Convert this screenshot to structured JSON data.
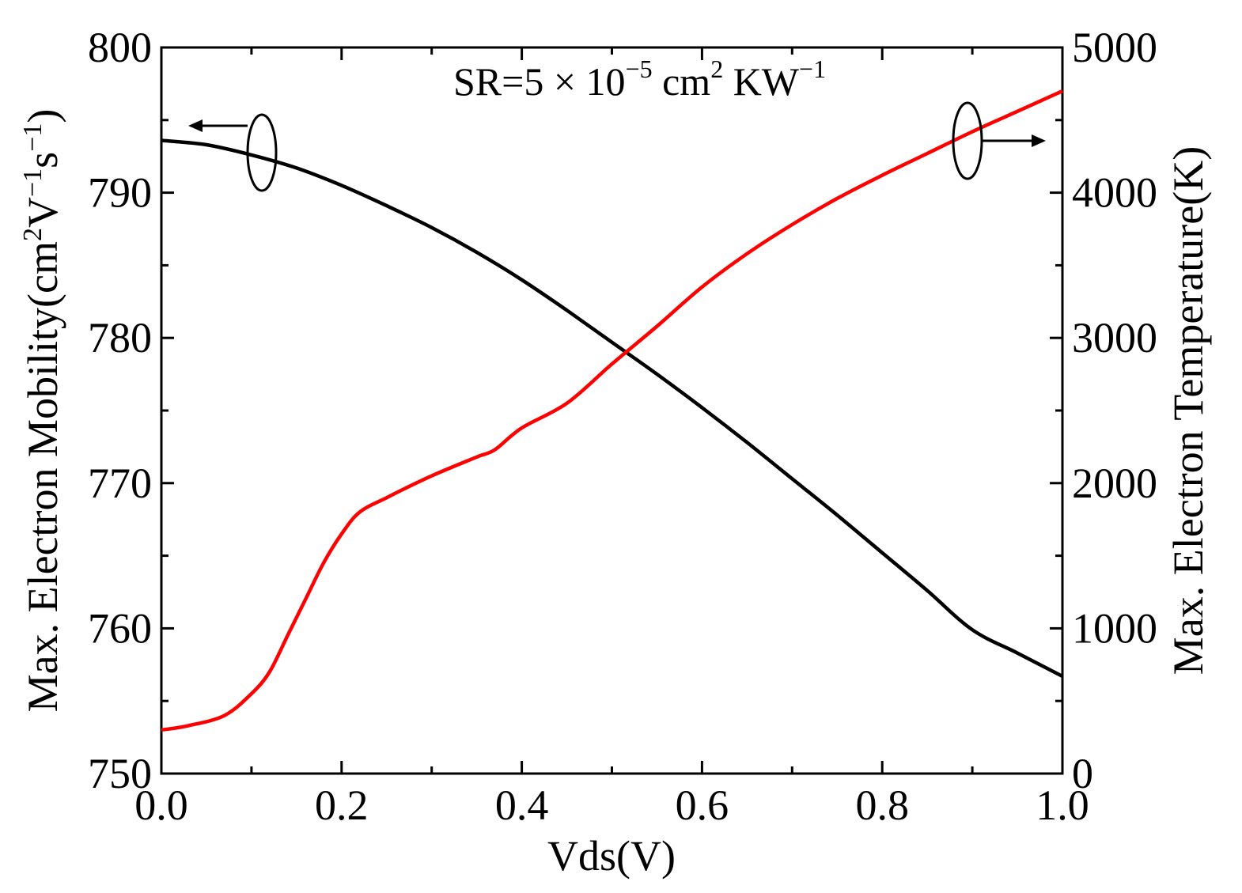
{
  "chart_data": {
    "type": "line",
    "title": "",
    "annotation": {
      "prefix": "SR=5 × 10",
      "exponent": "−5",
      "unit_base": " cm",
      "unit_exponent": "2",
      "unit_tail": " KW",
      "unit_tail_exponent": "−1"
    },
    "xlabel": "Vds(V)",
    "xlim": [
      0.0,
      1.0
    ],
    "x_ticks": [
      "0.0",
      "0.2",
      "0.4",
      "0.6",
      "0.8",
      "1.0"
    ],
    "y_left": {
      "label_prefix": "Max. Electron Mobility(cm",
      "label_sup1": "2",
      "label_mid1": "V",
      "label_sup2": "−1",
      "label_mid2": "s",
      "label_sup3": "−1",
      "label_suffix": ")",
      "ylim": [
        750,
        800
      ],
      "ticks": [
        "750",
        "760",
        "770",
        "780",
        "790",
        "800"
      ]
    },
    "y_right": {
      "label": "Max. Electron Temperature(K)",
      "ylim": [
        0,
        5000
      ],
      "ticks": [
        "0",
        "1000",
        "2000",
        "3000",
        "4000",
        "5000"
      ]
    },
    "series": [
      {
        "name": "Max. Electron Mobility",
        "axis": "left",
        "color": "#000000",
        "x": [
          0.0,
          0.05,
          0.1,
          0.15,
          0.2,
          0.25,
          0.3,
          0.35,
          0.4,
          0.45,
          0.5,
          0.55,
          0.6,
          0.65,
          0.7,
          0.75,
          0.8,
          0.85,
          0.9,
          0.95,
          1.0
        ],
        "values": [
          793.6,
          793.3,
          792.6,
          791.7,
          790.5,
          789.1,
          787.6,
          785.9,
          784.0,
          781.9,
          779.7,
          777.5,
          775.2,
          772.8,
          770.3,
          767.8,
          765.2,
          762.6,
          759.9,
          758.3,
          756.7
        ]
      },
      {
        "name": "Max. Electron Temperature",
        "axis": "right",
        "color": "#ff0000",
        "x": [
          0.0,
          0.03,
          0.07,
          0.1,
          0.12,
          0.14,
          0.16,
          0.18,
          0.2,
          0.22,
          0.25,
          0.3,
          0.35,
          0.37,
          0.4,
          0.45,
          0.5,
          0.55,
          0.6,
          0.65,
          0.7,
          0.75,
          0.8,
          0.85,
          0.9,
          0.95,
          1.0
        ],
        "values": [
          300,
          330,
          400,
          550,
          700,
          950,
          1200,
          1450,
          1650,
          1800,
          1900,
          2050,
          2180,
          2230,
          2380,
          2550,
          2820,
          3080,
          3350,
          3580,
          3780,
          3960,
          4120,
          4270,
          4420,
          4560,
          4700
        ]
      }
    ]
  }
}
